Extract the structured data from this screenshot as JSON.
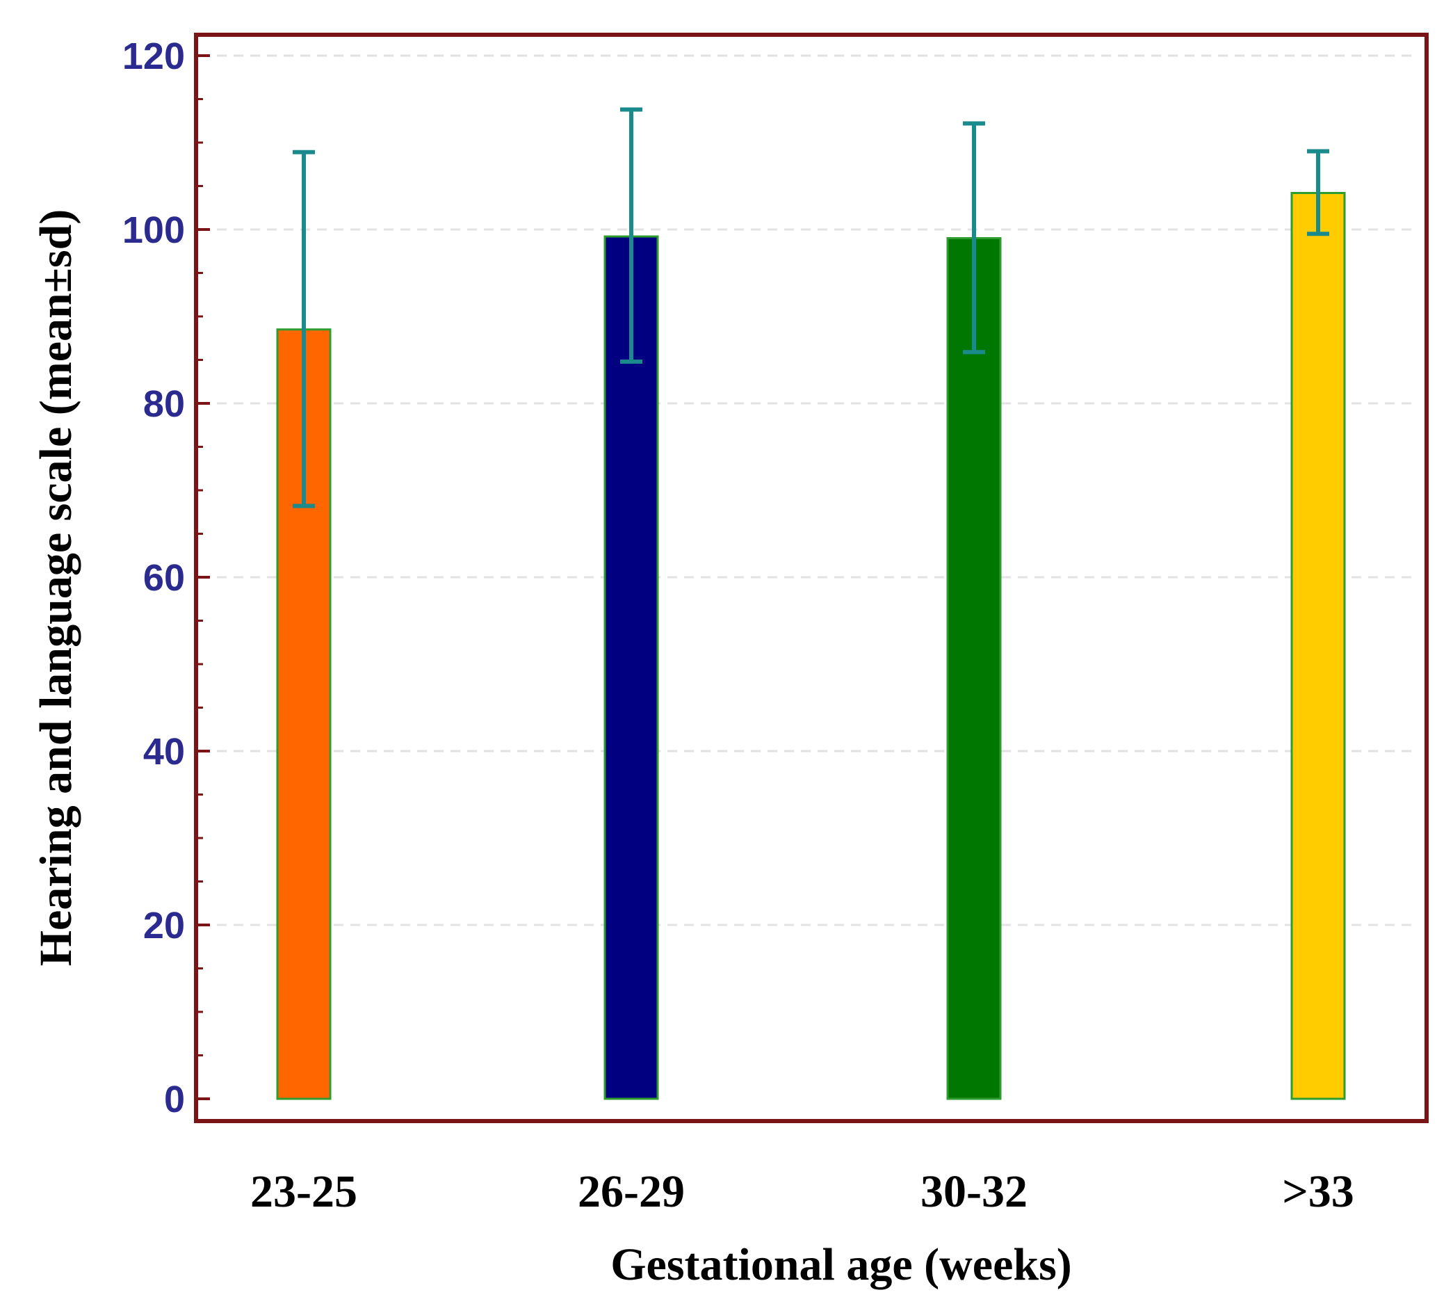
{
  "chart_data": {
    "type": "bar",
    "title": "",
    "xlabel": "Gestational age (weeks)",
    "ylabel": "Hearing and language scale (mean±sd)",
    "categories": [
      "23-25",
      "26-29",
      "30-32",
      ">33"
    ],
    "values": [
      88.5,
      99.2,
      99.0,
      104.2
    ],
    "error_low": [
      68.2,
      84.8,
      85.9,
      99.5
    ],
    "error_high": [
      108.9,
      113.8,
      112.2,
      109.0
    ],
    "colors": [
      "#ff6600",
      "#000080",
      "#007700",
      "#ffcc00"
    ],
    "ylim": [
      0,
      120
    ],
    "yticks": [
      "0",
      "20",
      "40",
      "60",
      "80",
      "100",
      "120"
    ],
    "grid": true,
    "style": {
      "frame_color": "#7b1416",
      "bar_border_color": "#2e9c2e",
      "error_color": "#1a8a8c",
      "tick_label_color": "#2b2b8f",
      "grid_color": "#e2e2e2"
    }
  }
}
